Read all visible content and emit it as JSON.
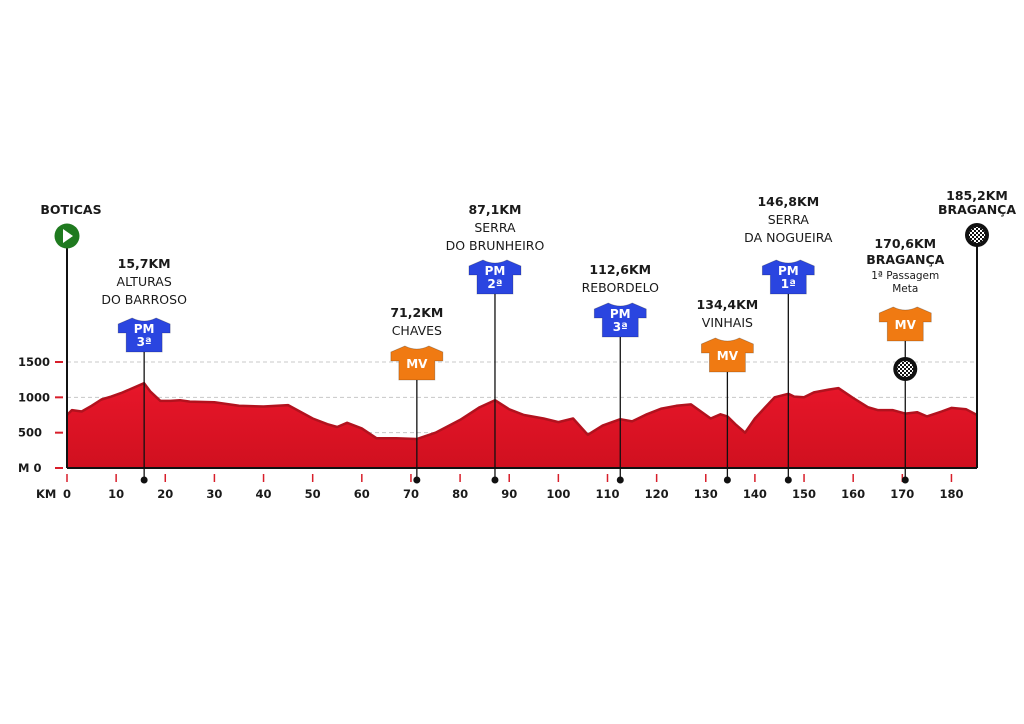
{
  "chart_data": {
    "type": "area",
    "title": "",
    "xlabel": "KM",
    "ylabel": "M",
    "xlim": [
      0,
      185.2
    ],
    "ylim": [
      0,
      1500
    ],
    "x_ticks": [
      0,
      10,
      20,
      30,
      40,
      50,
      60,
      70,
      80,
      90,
      100,
      110,
      120,
      130,
      140,
      150,
      160,
      170,
      180
    ],
    "y_ticks": [
      {
        "value": 0,
        "label": "M 0"
      },
      {
        "value": 500,
        "label": "500"
      },
      {
        "value": 1000,
        "label": "1000"
      },
      {
        "value": 1500,
        "label": "1500"
      }
    ],
    "grid": true,
    "colors": {
      "profile": "#dd1124",
      "profile_edge": "#b2121e",
      "mountain_jersey": "#2a45e0",
      "sprint_jersey": "#f07a12",
      "start_marker": "#1f7a1f",
      "axis_tick": "#d81e2a"
    },
    "profile": {
      "x": [
        0,
        1,
        3,
        5,
        7,
        9,
        11,
        13,
        15.7,
        17,
        19,
        21,
        23,
        25,
        30,
        35,
        40,
        45,
        50,
        53,
        55,
        57,
        60,
        63,
        67,
        71.2,
        75,
        80,
        84,
        87.1,
        90,
        93,
        97,
        100,
        103,
        106,
        109,
        112.6,
        115,
        118,
        121,
        124,
        127,
        129,
        131,
        133,
        134.4,
        136,
        138,
        140,
        142,
        144,
        146.8,
        148,
        150,
        152,
        155,
        157,
        160,
        163,
        165,
        168,
        170.6,
        173,
        175,
        178,
        180,
        183,
        185.2
      ],
      "y": [
        750,
        820,
        800,
        880,
        970,
        1010,
        1060,
        1120,
        1200,
        1080,
        950,
        950,
        960,
        940,
        930,
        880,
        870,
        890,
        700,
        620,
        580,
        640,
        560,
        420,
        420,
        410,
        500,
        680,
        860,
        960,
        830,
        750,
        700,
        650,
        700,
        470,
        600,
        690,
        660,
        760,
        840,
        880,
        900,
        800,
        700,
        760,
        730,
        620,
        500,
        700,
        850,
        1000,
        1050,
        1010,
        1000,
        1070,
        1110,
        1130,
        990,
        860,
        820,
        820,
        770,
        790,
        730,
        800,
        850,
        830,
        750
      ]
    },
    "start": {
      "km": "",
      "name": "BOTICAS",
      "icon": "start-play-icon"
    },
    "finish": {
      "km": "185,2KM",
      "name": "BRAGANÇA",
      "icon": "checkered-flag-icon"
    },
    "markers": [
      {
        "km_value": 15.7,
        "km": "15,7KM",
        "line1": "ALTURAS",
        "line2": "DO BARROSO",
        "jersey": "PM",
        "cat": "3ª",
        "kind": "mountain"
      },
      {
        "km_value": 71.2,
        "km": "71,2KM",
        "line1": "CHAVES",
        "line2": "",
        "jersey": "MV",
        "cat": "",
        "kind": "sprint"
      },
      {
        "km_value": 87.1,
        "km": "87,1KM",
        "line1": "SERRA",
        "line2": "DO BRUNHEIRO",
        "jersey": "PM",
        "cat": "2ª",
        "kind": "mountain"
      },
      {
        "km_value": 112.6,
        "km": "112,6KM",
        "line1": "REBORDELO",
        "line2": "",
        "jersey": "PM",
        "cat": "3ª",
        "kind": "mountain"
      },
      {
        "km_value": 134.4,
        "km": "134,4KM",
        "line1": "VINHAIS",
        "line2": "",
        "jersey": "MV",
        "cat": "",
        "kind": "sprint"
      },
      {
        "km_value": 146.8,
        "km": "146,8KM",
        "line1": "SERRA",
        "line2": "DA NOGUEIRA",
        "jersey": "PM",
        "cat": "1ª",
        "kind": "mountain"
      },
      {
        "km_value": 170.6,
        "km": "170,6KM",
        "line1": "BRAGANÇA",
        "line2": "",
        "sub1": "1ª Passagem",
        "sub2": "Meta",
        "jersey": "MV",
        "cat": "",
        "kind": "sprint",
        "flag": true
      }
    ]
  }
}
